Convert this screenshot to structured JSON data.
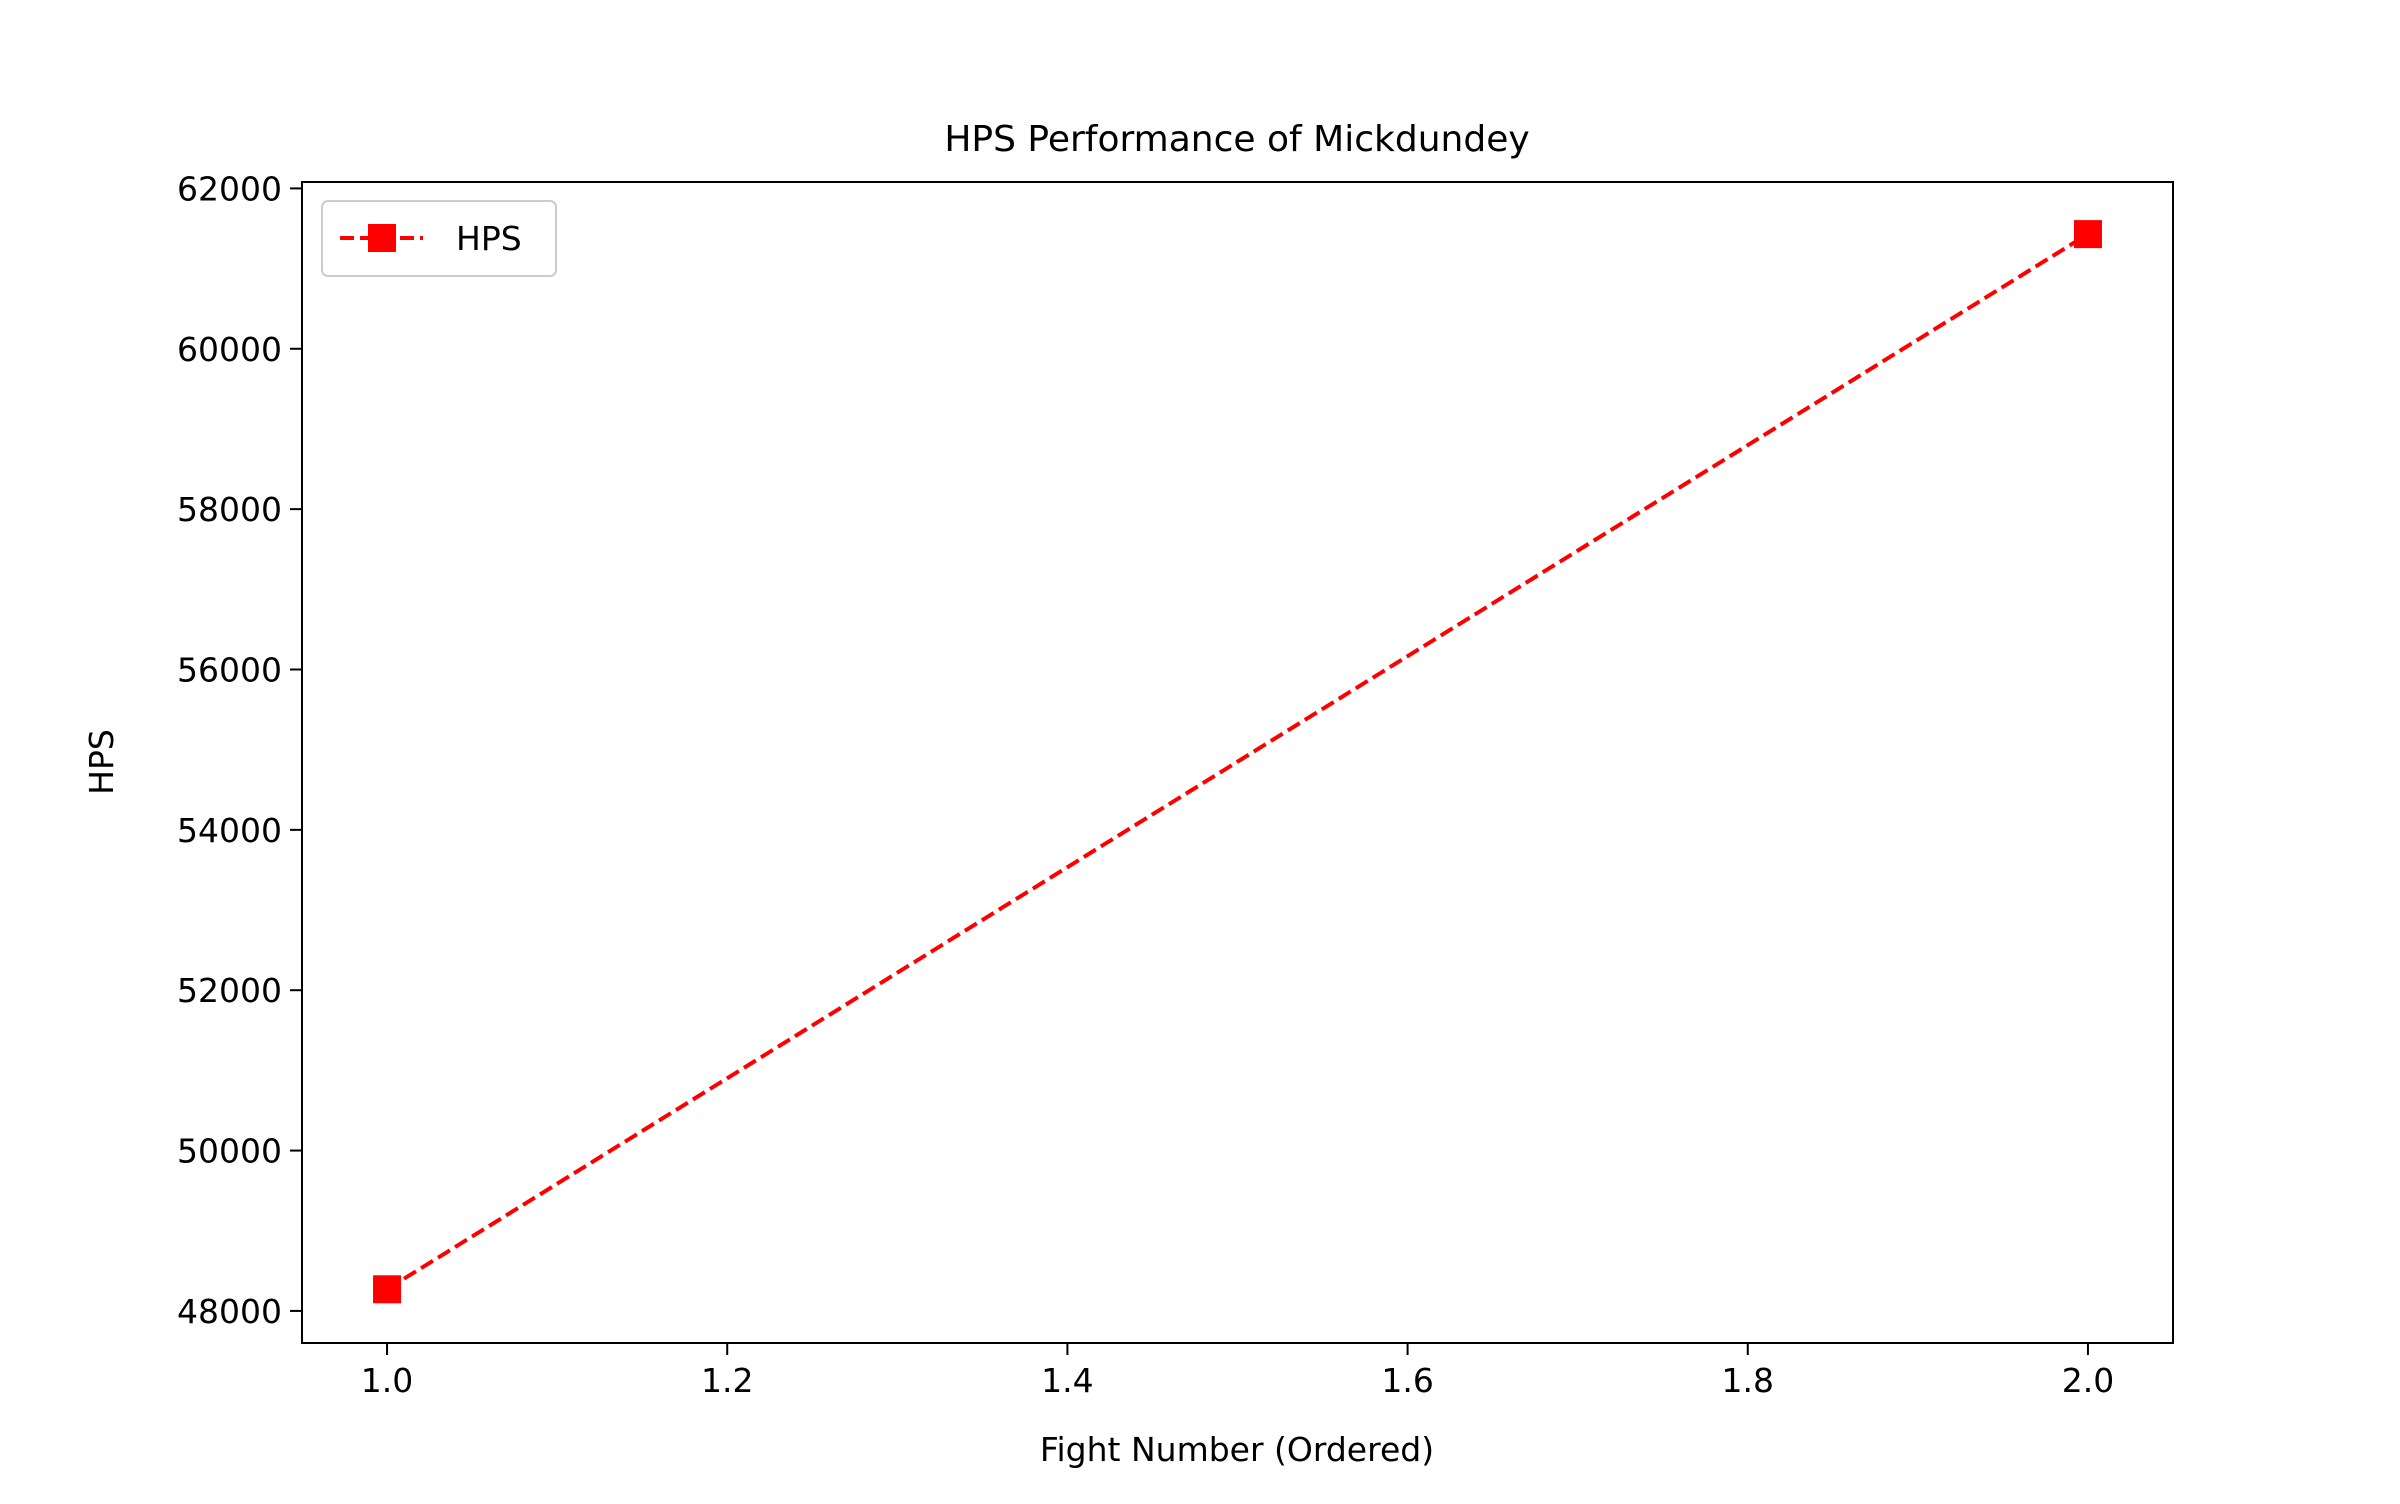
{
  "chart_data": {
    "type": "line",
    "title": "HPS Performance of Mickdundey",
    "xlabel": "Fight Number (Ordered)",
    "ylabel": "HPS",
    "xlim": [
      0.95,
      2.05
    ],
    "ylim": [
      47600,
      62080
    ],
    "xticks": [
      1.0,
      1.2,
      1.4,
      1.6,
      1.8,
      2.0
    ],
    "xtick_labels": [
      "1.0",
      "1.2",
      "1.4",
      "1.6",
      "1.8",
      "2.0"
    ],
    "yticks": [
      48000,
      50000,
      52000,
      54000,
      56000,
      58000,
      60000,
      62000
    ],
    "ytick_labels": [
      "48000",
      "50000",
      "52000",
      "54000",
      "56000",
      "58000",
      "60000",
      "62000"
    ],
    "grid": false,
    "legend": {
      "placement": "top-left",
      "entries": [
        "HPS"
      ]
    },
    "series": [
      {
        "name": "HPS",
        "color": "#ff0000",
        "line_style": "dashed",
        "marker": "square",
        "x": [
          1.0,
          2.0
        ],
        "y": [
          48270,
          61430
        ]
      }
    ]
  }
}
